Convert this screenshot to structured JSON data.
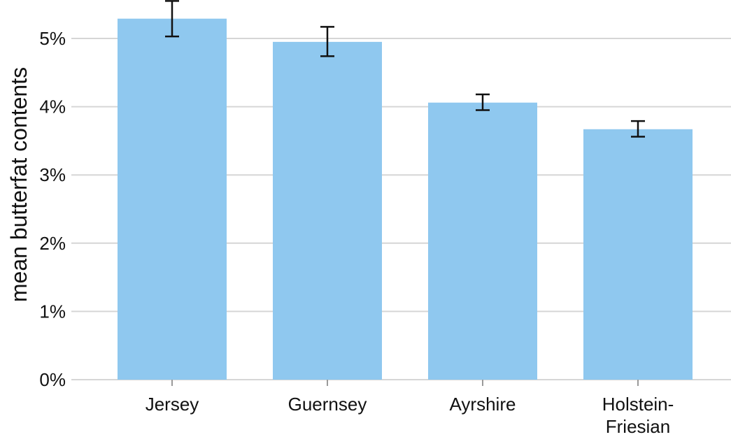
{
  "chart_data": {
    "type": "bar",
    "categories": [
      [
        "Jersey"
      ],
      [
        "Guernsey"
      ],
      [
        "Ayrshire"
      ],
      [
        "Holstein-",
        "Friesian"
      ]
    ],
    "values": [
      5.29,
      4.95,
      4.06,
      3.67
    ],
    "error_low": [
      5.03,
      4.74,
      3.95,
      3.56
    ],
    "error_high": [
      5.55,
      5.17,
      4.18,
      3.79
    ],
    "ylabel": "mean butterfat contents",
    "ylim": [
      0,
      5.6
    ],
    "yticks": [
      0,
      1,
      2,
      3,
      4,
      5
    ],
    "ytick_labels": [
      "0%",
      "1%",
      "2%",
      "3%",
      "4%",
      "5%"
    ],
    "grid": "horizontal",
    "bar_color": "#8fc8ef"
  }
}
